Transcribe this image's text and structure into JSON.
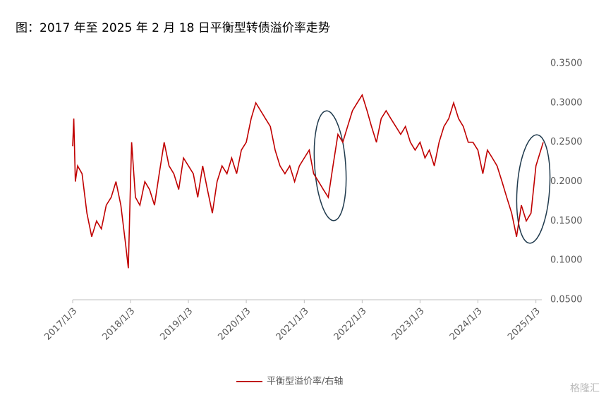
{
  "chart_data": {
    "type": "line",
    "title": "图：2017 年至 2025 年 2 月 18 日平衡型转债溢价率走势",
    "watermark": "格隆汇",
    "x": [
      "2017/1/3",
      "2017/1/10",
      "2017/1/20",
      "2017/2/3",
      "2017/3/3",
      "2017/4/3",
      "2017/5/3",
      "2017/6/3",
      "2017/7/3",
      "2017/8/3",
      "2017/9/3",
      "2017/10/3",
      "2017/11/3",
      "2017/12/3",
      "2017/12/20",
      "2018/1/3",
      "2018/1/10",
      "2018/2/3",
      "2018/3/3",
      "2018/4/3",
      "2018/5/3",
      "2018/6/3",
      "2018/7/3",
      "2018/8/3",
      "2018/9/3",
      "2018/10/3",
      "2018/11/3",
      "2018/12/3",
      "2019/1/3",
      "2019/2/3",
      "2019/3/3",
      "2019/4/3",
      "2019/5/3",
      "2019/6/3",
      "2019/7/3",
      "2019/8/3",
      "2019/9/3",
      "2019/10/3",
      "2019/11/3",
      "2019/12/3",
      "2020/1/3",
      "2020/2/3",
      "2020/3/3",
      "2020/4/3",
      "2020/5/3",
      "2020/6/3",
      "2020/7/3",
      "2020/8/3",
      "2020/9/3",
      "2020/10/3",
      "2020/11/3",
      "2020/12/3",
      "2021/1/3",
      "2021/2/3",
      "2021/3/3",
      "2021/4/3",
      "2021/5/3",
      "2021/6/3",
      "2021/7/3",
      "2021/8/3",
      "2021/9/3",
      "2021/10/3",
      "2021/11/3",
      "2021/12/3",
      "2022/1/3",
      "2022/2/3",
      "2022/3/3",
      "2022/4/3",
      "2022/5/3",
      "2022/6/3",
      "2022/7/3",
      "2022/8/3",
      "2022/9/3",
      "2022/10/3",
      "2022/11/3",
      "2022/12/3",
      "2023/1/3",
      "2023/2/3",
      "2023/3/3",
      "2023/4/3",
      "2023/5/3",
      "2023/6/3",
      "2023/7/3",
      "2023/8/3",
      "2023/9/3",
      "2023/10/3",
      "2023/11/3",
      "2023/12/3",
      "2024/1/3",
      "2024/2/3",
      "2024/3/3",
      "2024/4/3",
      "2024/5/3",
      "2024/6/3",
      "2024/7/3",
      "2024/8/3",
      "2024/9/3",
      "2024/10/3",
      "2024/11/3",
      "2024/12/3",
      "2025/1/3",
      "2025/2/3",
      "2025/2/18"
    ],
    "series": [
      {
        "name": "平衡型溢价率/右轴",
        "color": "#c00000",
        "axis": "y2",
        "values": [
          0.245,
          0.28,
          0.2,
          0.22,
          0.21,
          0.16,
          0.13,
          0.15,
          0.14,
          0.17,
          0.18,
          0.2,
          0.17,
          0.12,
          0.09,
          0.2,
          0.25,
          0.18,
          0.17,
          0.2,
          0.19,
          0.17,
          0.21,
          0.25,
          0.22,
          0.21,
          0.19,
          0.23,
          0.22,
          0.21,
          0.18,
          0.22,
          0.19,
          0.16,
          0.2,
          0.22,
          0.21,
          0.23,
          0.21,
          0.24,
          0.25,
          0.28,
          0.3,
          0.29,
          0.28,
          0.27,
          0.24,
          0.22,
          0.21,
          0.22,
          0.2,
          0.22,
          0.23,
          0.24,
          0.21,
          0.2,
          0.19,
          0.18,
          0.22,
          0.26,
          0.25,
          0.27,
          0.29,
          0.3,
          0.31,
          0.29,
          0.27,
          0.25,
          0.28,
          0.29,
          0.28,
          0.27,
          0.26,
          0.27,
          0.25,
          0.24,
          0.25,
          0.23,
          0.24,
          0.22,
          0.25,
          0.27,
          0.28,
          0.3,
          0.28,
          0.27,
          0.25,
          0.25,
          0.24,
          0.21,
          0.24,
          0.23,
          0.22,
          0.2,
          0.18,
          0.16,
          0.13,
          0.17,
          0.15,
          0.16,
          0.22,
          0.24,
          0.25
        ]
      }
    ],
    "xlim": [
      "2017/1/3",
      "2025/2/18"
    ],
    "xticks": [
      "2017/1/3",
      "2018/1/3",
      "2019/1/3",
      "2020/1/3",
      "2021/1/3",
      "2022/1/3",
      "2023/1/3",
      "2024/1/3",
      "2025/1/3"
    ],
    "y2lim": [
      0.05,
      0.35
    ],
    "y2ticks": [
      {
        "value": 0.05,
        "label": "0.0500"
      },
      {
        "value": 0.1,
        "label": "0.1000"
      },
      {
        "value": 0.15,
        "label": "0.1500"
      },
      {
        "value": 0.2,
        "label": "0.2000"
      },
      {
        "value": 0.25,
        "label": "0.2500"
      },
      {
        "value": 0.3,
        "label": "0.3000"
      },
      {
        "value": 0.35,
        "label": "0.3500"
      }
    ],
    "legend": "bottom"
  }
}
